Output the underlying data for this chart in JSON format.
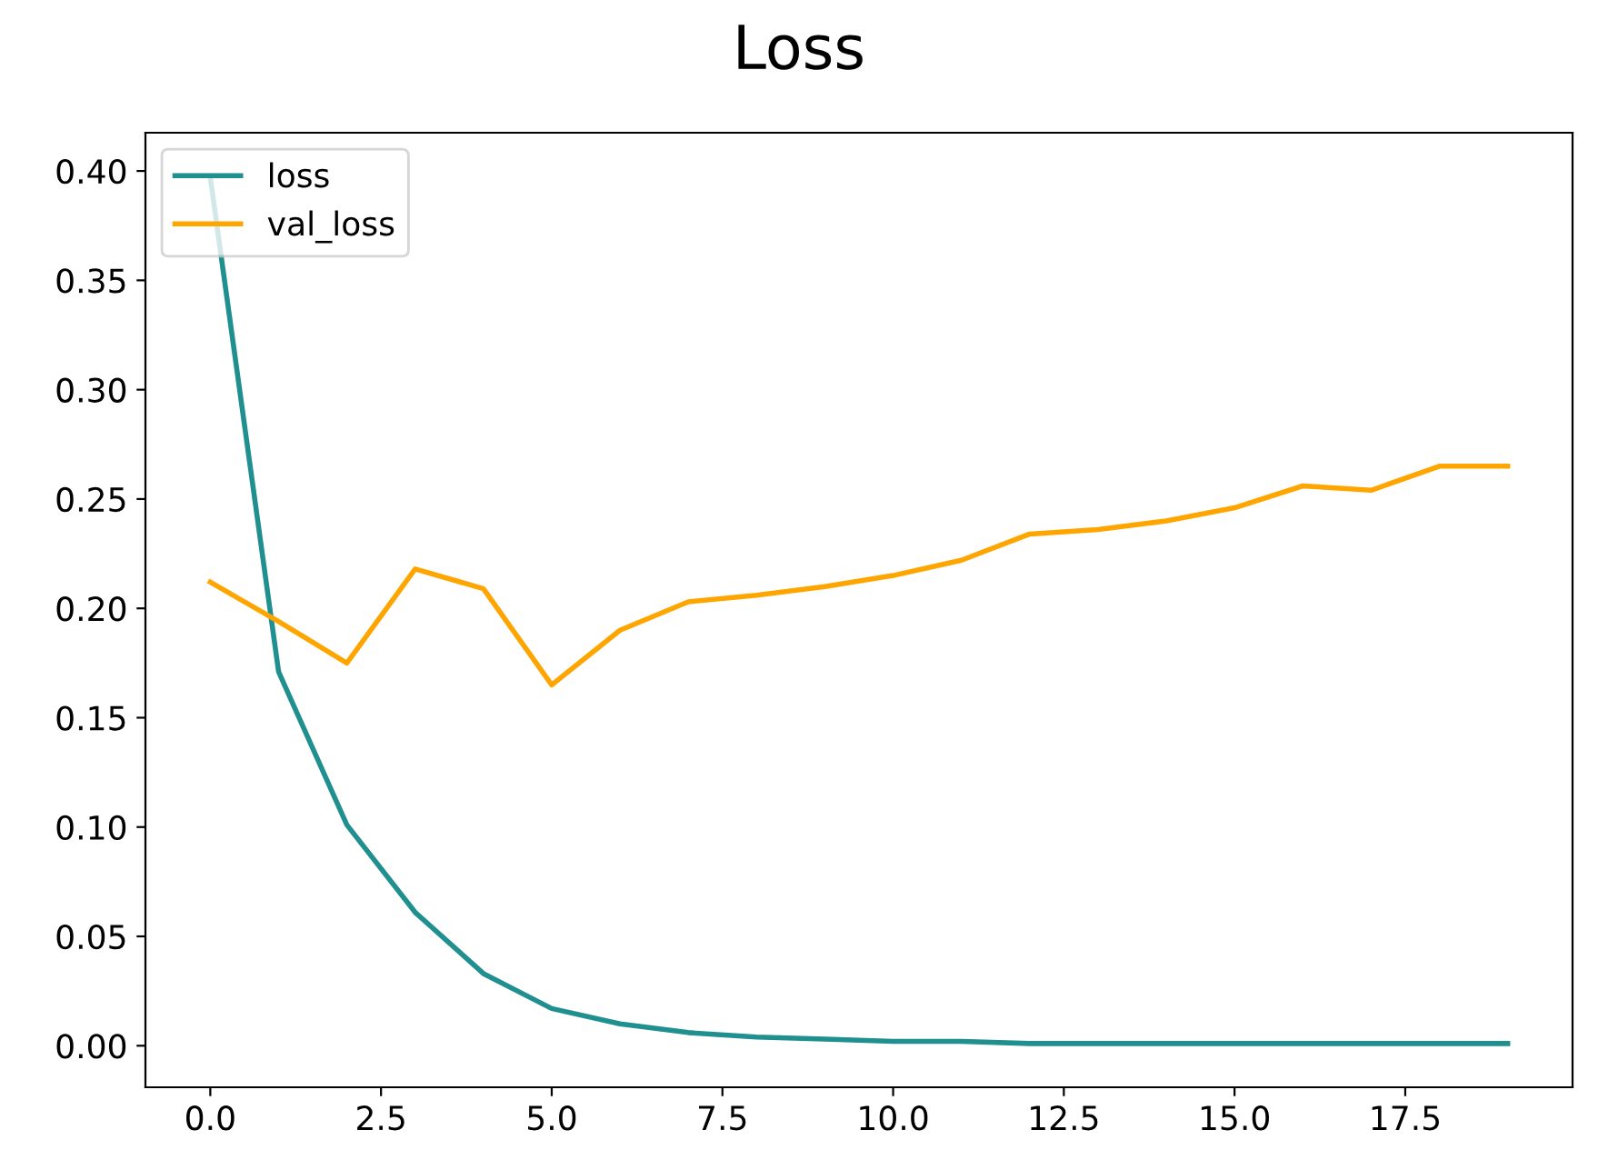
{
  "chart_data": {
    "type": "line",
    "title": "Loss",
    "x": [
      0,
      1,
      2,
      3,
      4,
      5,
      6,
      7,
      8,
      9,
      10,
      11,
      12,
      13,
      14,
      15,
      16,
      17,
      18,
      19
    ],
    "series": [
      {
        "name": "loss",
        "color": "#1f8f8f",
        "values": [
          0.397,
          0.171,
          0.101,
          0.061,
          0.033,
          0.017,
          0.01,
          0.006,
          0.004,
          0.003,
          0.002,
          0.002,
          0.001,
          0.001,
          0.001,
          0.001,
          0.001,
          0.001,
          0.001,
          0.001
        ]
      },
      {
        "name": "val_loss",
        "color": "#ffa500",
        "values": [
          0.212,
          0.194,
          0.175,
          0.218,
          0.209,
          0.165,
          0.19,
          0.203,
          0.206,
          0.21,
          0.215,
          0.222,
          0.234,
          0.236,
          0.24,
          0.246,
          0.256,
          0.254,
          0.265,
          0.265
        ]
      }
    ],
    "xlim": [
      -0.95,
      19.95
    ],
    "ylim": [
      -0.019,
      0.4175
    ],
    "xticks": [
      {
        "value": 0,
        "label": "0.0"
      },
      {
        "value": 2.5,
        "label": "2.5"
      },
      {
        "value": 5,
        "label": "5.0"
      },
      {
        "value": 7.5,
        "label": "7.5"
      },
      {
        "value": 10,
        "label": "10.0"
      },
      {
        "value": 12.5,
        "label": "12.5"
      },
      {
        "value": 15,
        "label": "15.0"
      },
      {
        "value": 17.5,
        "label": "17.5"
      }
    ],
    "yticks": [
      {
        "value": 0,
        "label": "0.00"
      },
      {
        "value": 0.05,
        "label": "0.05"
      },
      {
        "value": 0.1,
        "label": "0.10"
      },
      {
        "value": 0.15,
        "label": "0.15"
      },
      {
        "value": 0.2,
        "label": "0.20"
      },
      {
        "value": 0.25,
        "label": "0.25"
      },
      {
        "value": 0.3,
        "label": "0.30"
      },
      {
        "value": 0.35,
        "label": "0.35"
      },
      {
        "value": 0.4,
        "label": "0.40"
      }
    ],
    "legend": "top left",
    "grid": false
  }
}
